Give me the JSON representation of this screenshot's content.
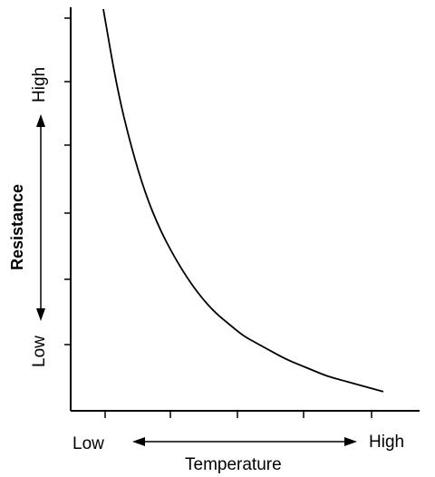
{
  "chart_data": {
    "type": "line",
    "title": "",
    "xlabel": "Temperature",
    "ylabel": "Resistance",
    "x_axis": {
      "low_label": "Low",
      "high_label": "High"
    },
    "y_axis": {
      "low_label": "Low",
      "high_label": "High"
    },
    "grid": false,
    "legend": "none",
    "xlim": [
      0,
      1
    ],
    "ylim": [
      0,
      1
    ],
    "series": [
      {
        "x": [
          0.0,
          0.05,
          0.1,
          0.15,
          0.2,
          0.25,
          0.3,
          0.35,
          0.4,
          0.45,
          0.5,
          0.55,
          0.6,
          0.65,
          0.7,
          0.75,
          0.8,
          0.85,
          0.9,
          0.95,
          1.0
        ],
        "y": [
          1.0,
          0.79,
          0.64,
          0.52,
          0.43,
          0.36,
          0.3,
          0.25,
          0.21,
          0.18,
          0.15,
          0.13,
          0.11,
          0.09,
          0.075,
          0.06,
          0.045,
          0.035,
          0.025,
          0.015,
          0.005
        ]
      }
    ]
  }
}
